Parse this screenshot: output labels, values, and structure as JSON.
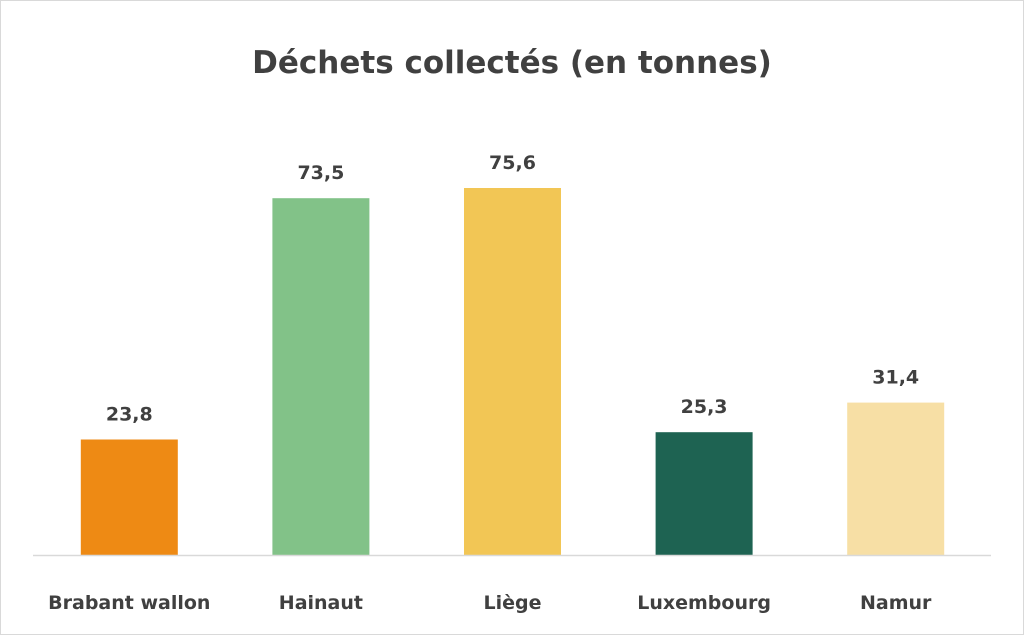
{
  "chart_data": {
    "type": "bar",
    "title": "Déchets collectés (en tonnes)",
    "xlabel": "",
    "ylabel": "",
    "categories": [
      "Brabant wallon",
      "Hainaut",
      "Liège",
      "Luxembourg",
      "Namur"
    ],
    "values": [
      23.8,
      73.5,
      75.6,
      25.3,
      31.4
    ],
    "value_labels": [
      "23,8",
      "73,5",
      "75,6",
      "25,3",
      "31,4"
    ],
    "colors": [
      "#ee8a14",
      "#82c288",
      "#f2c655",
      "#1e6352",
      "#f7dfa5"
    ],
    "ylim": [
      0,
      80
    ],
    "grid": false,
    "legend": "none"
  }
}
